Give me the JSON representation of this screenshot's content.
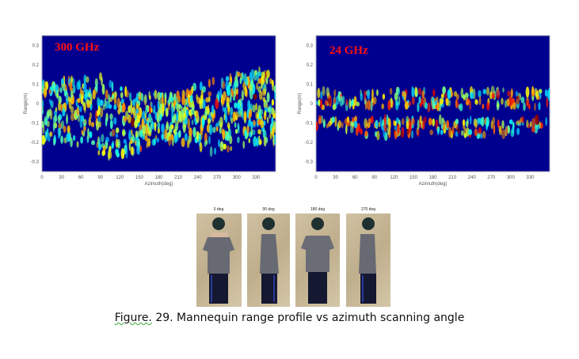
{
  "chart_data": [
    {
      "type": "heatmap",
      "title": "300 GHz",
      "xlabel": "Azimuth(deg)",
      "ylabel": "Range(m)",
      "xlim": [
        0,
        360
      ],
      "ylim": [
        -0.35,
        0.35
      ],
      "xticks": [
        "0",
        "30",
        "60",
        "90",
        "120",
        "150",
        "180",
        "210",
        "240",
        "270",
        "300",
        "330"
      ],
      "yticks": [
        "0.3",
        "0.2",
        "0.1",
        "0",
        "-0.1",
        "-0.2",
        "-0.3"
      ],
      "colormap": "jet",
      "background": "#00008f",
      "band_azimuth": [
        0,
        30,
        60,
        90,
        120,
        150,
        180,
        210,
        240,
        270,
        300,
        330,
        360
      ],
      "band_upper": [
        0.12,
        0.12,
        0.13,
        0.15,
        0.08,
        0.05,
        0.05,
        0.06,
        0.1,
        0.12,
        0.15,
        0.17,
        0.15
      ],
      "band_lower": [
        -0.2,
        -0.2,
        -0.22,
        -0.27,
        -0.27,
        -0.24,
        -0.2,
        -0.2,
        -0.22,
        -0.26,
        -0.22,
        -0.2,
        -0.2
      ],
      "density": 0.85
    },
    {
      "type": "heatmap",
      "title": "24 GHz",
      "xlabel": "Azimuth(deg)",
      "ylabel": "Range(m)",
      "xlim": [
        0,
        360
      ],
      "ylim": [
        -0.35,
        0.35
      ],
      "xticks": [
        "0",
        "30",
        "60",
        "90",
        "120",
        "150",
        "180",
        "210",
        "240",
        "270",
        "300",
        "330"
      ],
      "yticks": [
        "0.3",
        "0.2",
        "0.1",
        "0",
        "-0.1",
        "-0.2",
        "-0.3"
      ],
      "colormap": "jet",
      "background": "#00008f",
      "band_azimuth": [
        0,
        30,
        60,
        90,
        120,
        150,
        180,
        210,
        240,
        270,
        300,
        330,
        360
      ],
      "band_upper": [
        0.06,
        0.08,
        0.1,
        0.12,
        0.1,
        0.12,
        0.1,
        0.08,
        0.08,
        0.1,
        0.12,
        0.1,
        0.06
      ],
      "band_lower": [
        -0.12,
        -0.12,
        -0.15,
        -0.18,
        -0.2,
        -0.16,
        -0.15,
        -0.16,
        -0.2,
        -0.26,
        -0.2,
        -0.14,
        -0.12
      ],
      "density": 0.45
    }
  ],
  "photos": [
    {
      "label": "0 deg"
    },
    {
      "label": "90 deg"
    },
    {
      "label": "180 deg"
    },
    {
      "label": "270 deg"
    }
  ],
  "caption": {
    "prefix": "Figure.",
    "text": " 29. Mannequin range profile vs azimuth scanning angle"
  }
}
